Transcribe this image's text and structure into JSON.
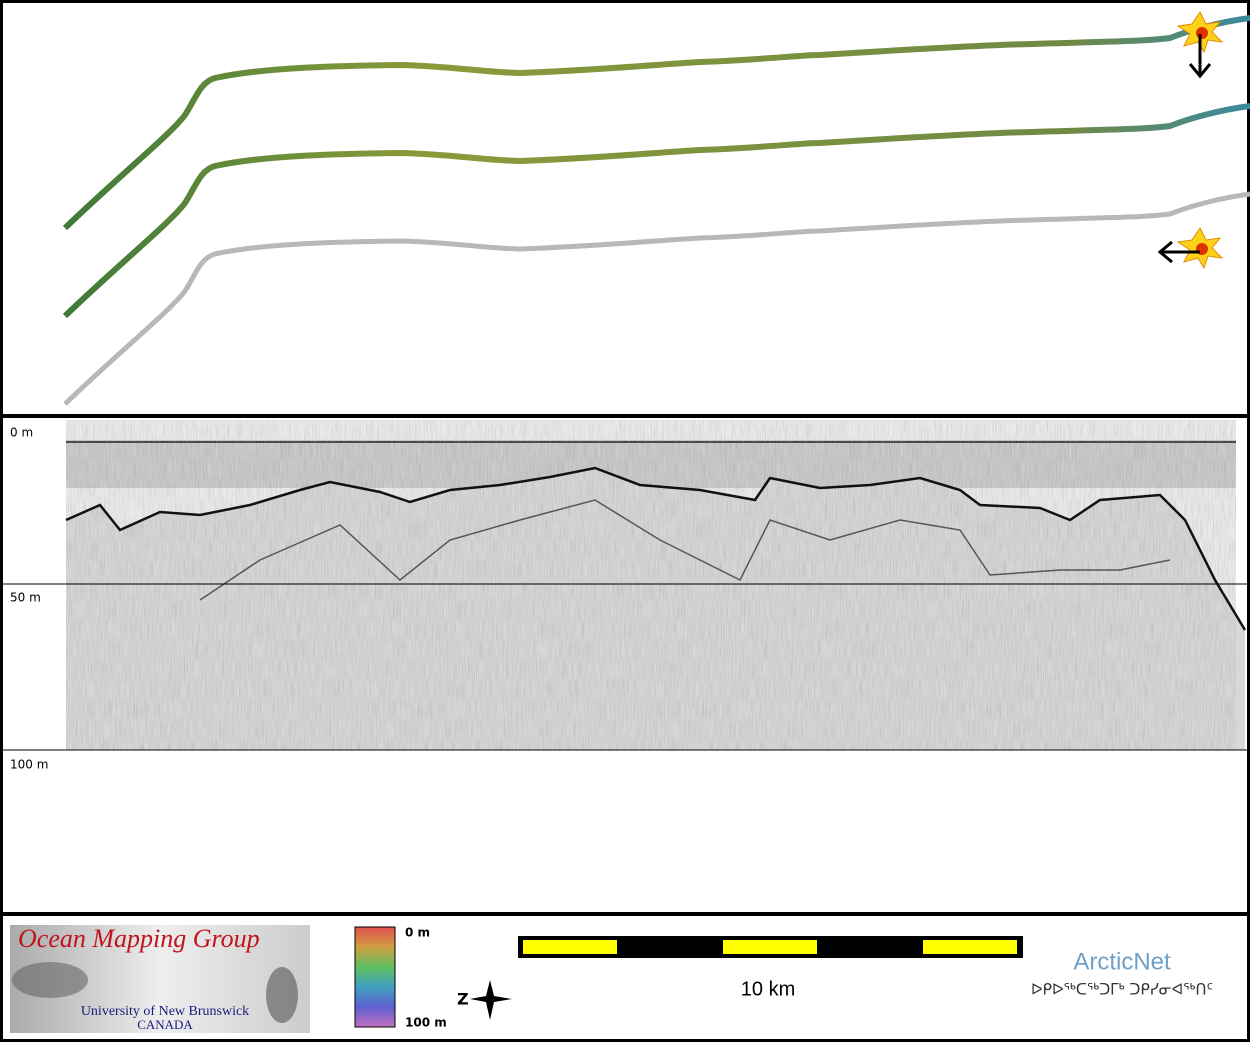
{
  "profile": {
    "depth_labels": [
      "0 m",
      "50 m",
      "100 m"
    ]
  },
  "legend": {
    "logo": {
      "title": "Ocean Mapping Group",
      "university": "University of New Brunswick",
      "country": "CANADA"
    },
    "colorbar": {
      "top_label": "0 m",
      "bottom_label": "100 m"
    },
    "compass": "Z",
    "scale_bar": "10 km",
    "partner": {
      "name": "ArcticNet",
      "syllabics": "ᐅᑭᐅᖅᑕᖅᑐᒥᒃ ᑐᑭᓯᓂᐊᖅᑎᑦ"
    }
  }
}
